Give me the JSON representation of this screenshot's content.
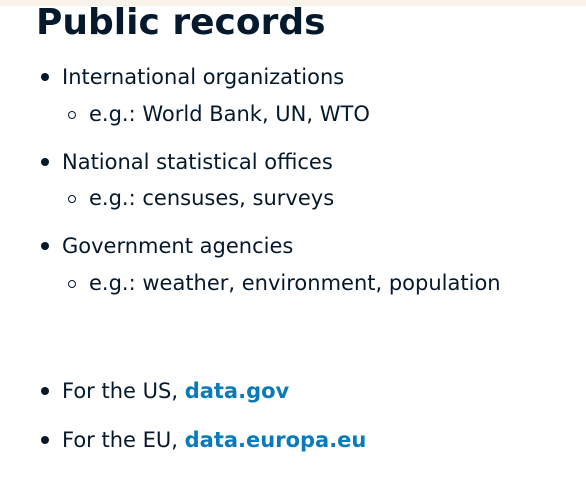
{
  "title": "Public records",
  "items": [
    {
      "label": "International organizations",
      "example": "e.g.: World Bank, UN, WTO"
    },
    {
      "label": "National statistical offices",
      "example": "e.g.: censuses, surveys"
    },
    {
      "label": "Government agencies",
      "example": "e.g.: weather, environment, population"
    }
  ],
  "links": [
    {
      "prefix": "For the US, ",
      "link_text": "data.gov"
    },
    {
      "prefix": "For the EU, ",
      "link_text": "data.europa.eu"
    }
  ],
  "colors": {
    "text": "#05192d",
    "link": "#0a7bb8",
    "top_band": "#f7f3eb"
  }
}
